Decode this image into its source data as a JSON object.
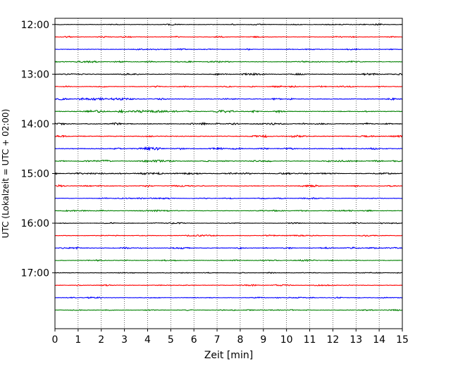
{
  "chart_data": {
    "type": "line",
    "title": "",
    "xlabel": "Zeit  [min]",
    "ylabel": "UTC (Lokalzeit = UTC + 02:00)",
    "xlim": [
      0,
      15
    ],
    "x_ticks": [
      0,
      1,
      2,
      3,
      4,
      5,
      6,
      7,
      8,
      9,
      10,
      11,
      12,
      13,
      14,
      15
    ],
    "ylim": [
      "11:52:30",
      "18:07:30"
    ],
    "y_ticks": [
      "12:00",
      "13:00",
      "14:00",
      "15:00",
      "16:00",
      "17:00"
    ],
    "grid": {
      "vertical": true,
      "style": "dotted"
    },
    "trace_interval_minutes": 15,
    "trace_colors": [
      "#000000",
      "#ff0000",
      "#0000ff",
      "#008000"
    ],
    "traces": [
      {
        "start": "12:00",
        "color": "#000000",
        "amplitude": 0.5
      },
      {
        "start": "12:15",
        "color": "#ff0000",
        "amplitude": 0.5
      },
      {
        "start": "12:30",
        "color": "#0000ff",
        "amplitude": 0.5
      },
      {
        "start": "12:45",
        "color": "#008000",
        "amplitude": 0.6
      },
      {
        "start": "13:00",
        "color": "#000000",
        "amplitude": 0.6
      },
      {
        "start": "13:15",
        "color": "#ff0000",
        "amplitude": 0.6
      },
      {
        "start": "13:30",
        "color": "#0000ff",
        "amplitude": 0.7
      },
      {
        "start": "13:45",
        "color": "#008000",
        "amplitude": 0.8
      },
      {
        "start": "14:00",
        "color": "#000000",
        "amplitude": 0.8
      },
      {
        "start": "14:15",
        "color": "#ff0000",
        "amplitude": 0.8
      },
      {
        "start": "14:30",
        "color": "#0000ff",
        "amplitude": 0.8
      },
      {
        "start": "14:45",
        "color": "#008000",
        "amplitude": 0.7
      },
      {
        "start": "15:00",
        "color": "#000000",
        "amplitude": 0.7
      },
      {
        "start": "15:15",
        "color": "#ff0000",
        "amplitude": 0.7
      },
      {
        "start": "15:30",
        "color": "#0000ff",
        "amplitude": 0.5
      },
      {
        "start": "15:45",
        "color": "#008000",
        "amplitude": 0.5
      },
      {
        "start": "16:00",
        "color": "#000000",
        "amplitude": 0.4
      },
      {
        "start": "16:15",
        "color": "#ff0000",
        "amplitude": 0.5
      },
      {
        "start": "16:30",
        "color": "#0000ff",
        "amplitude": 0.6
      },
      {
        "start": "16:45",
        "color": "#008000",
        "amplitude": 0.5
      },
      {
        "start": "17:00",
        "color": "#000000",
        "amplitude": 0.4
      },
      {
        "start": "17:15",
        "color": "#ff0000",
        "amplitude": 0.5
      },
      {
        "start": "17:30",
        "color": "#0000ff",
        "amplitude": 0.5
      },
      {
        "start": "17:45",
        "color": "#008000",
        "amplitude": 0.5
      }
    ]
  }
}
